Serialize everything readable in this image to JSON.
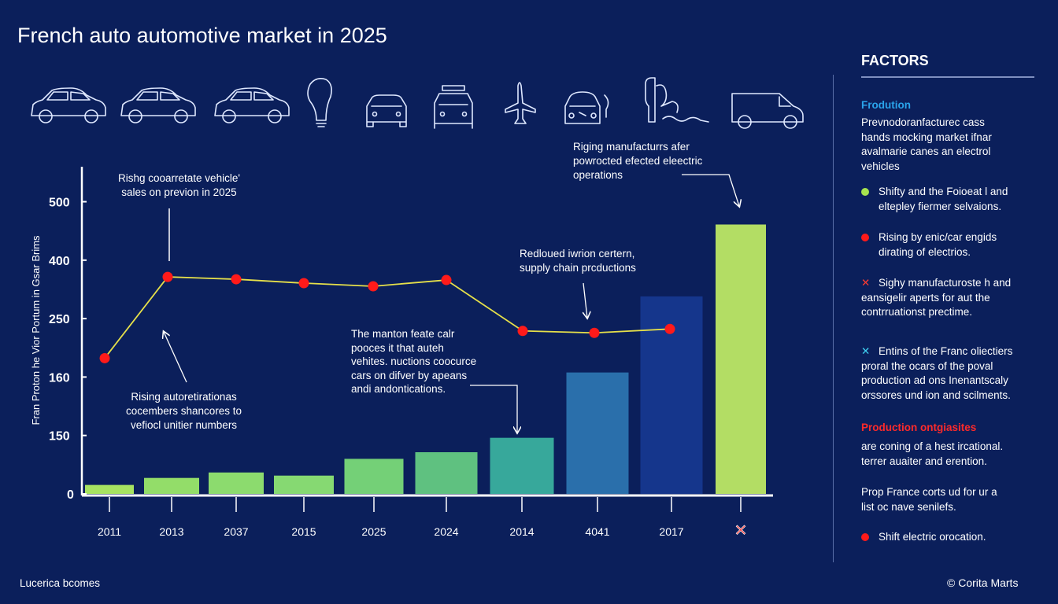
{
  "title": "French auto automotive market in 2025",
  "icons": [
    "hatchback-car-icon",
    "sedan-car-icon",
    "coupe-car-icon",
    "lightbulb-icon",
    "car-front-icon",
    "car-roof-box-icon",
    "airplane-icon",
    "car-charging-icon",
    "charging-station-icon",
    "van-icon"
  ],
  "chart_data": {
    "type": "bar",
    "title": "",
    "ylabel": "Fran Proton he Vior Portum in Gsar Brims",
    "xlabel": "",
    "y_ticks": [
      "0",
      "150",
      "160",
      "250",
      "400",
      "500"
    ],
    "categories": [
      "2011",
      "2013",
      "2037",
      "2015",
      "2025",
      "2024",
      "2014",
      "4041",
      "2017",
      "X"
    ],
    "values": [
      23,
      41,
      55,
      47,
      90,
      107,
      144,
      167,
      307,
      461
    ],
    "bar_colors": [
      "#a7e361",
      "#93dd69",
      "#8cdb6e",
      "#86d972",
      "#74d077",
      "#5fc180",
      "#37a89b",
      "#2a6fab",
      "#15368c",
      "#b3dd64"
    ],
    "line_series": {
      "categories": [
        "2011",
        "2013",
        "2037",
        "2015",
        "2025",
        "2024",
        "2014",
        "4041",
        "2017"
      ],
      "values": [
        189,
        357,
        351,
        341,
        333,
        349,
        231,
        228,
        234
      ],
      "line_color": "#e6e04a",
      "marker_color": "#ff1a1a"
    },
    "grid": false,
    "annotations": [
      [
        "Rishg cooarretate vehicle'",
        "sales on previon in 2025"
      ],
      [
        "Rising autoretirationas",
        "cocembers shancores to",
        "vefiocl unitier numbers"
      ],
      [
        "The manton feate calr",
        "pooces it that auteh",
        "vehites. nuctions coocurce",
        "cars on difver by apeans",
        "andi andontications."
      ],
      [
        "Redloued iwrion certern,",
        "supply chain prcductions"
      ],
      [
        "Riging manufacturrs afer",
        "powrocted efected eleectric",
        "operations"
      ]
    ]
  },
  "factors": {
    "title": "FACTORS",
    "heading1": "Frodution",
    "para1": [
      "Prevnodoranfacturec cass",
      "hands mocking market ifnar",
      "avalmarie canes an electrol",
      "vehicles"
    ],
    "bullets": [
      {
        "marker": "dot",
        "color": "#a6e34f",
        "lines": [
          "Shifty and the Foioeat l and",
          "eltepley fiermer selvaions."
        ]
      },
      {
        "marker": "dot",
        "color": "#ff1a1a",
        "lines": [
          "Rising by enic/car engids",
          "dirating of electrios."
        ]
      },
      {
        "marker": "x",
        "color": "#ff3b30",
        "lines": [
          "Sighy manufacturoste h and",
          "eansigelir aperts for aut the",
          "contrruationst prectime."
        ]
      },
      {
        "marker": "x",
        "color": "#3fd0f0",
        "lines": [
          "Entins of the Franc oliectiers",
          "proral the ocars of the poval",
          "production ad ons Inenantscaly",
          "orssores und ion and scilments."
        ]
      }
    ],
    "heading2": "Production ontgiasites",
    "heading2_color": "#ff2a2a",
    "heading1_color": "#2aa3ea",
    "para2": [
      "are coning of a hest ircational.",
      "terrer auaiter and erention."
    ],
    "para3": [
      "Prop France corts ud for ur a",
      "list oc nave senilefs."
    ],
    "last_bullet": {
      "marker": "dot",
      "color": "#ff1a1a",
      "text": "Shift electric orocation."
    }
  },
  "footer": {
    "left": "Lucerica bcomes",
    "right": "© Corita Marts"
  }
}
